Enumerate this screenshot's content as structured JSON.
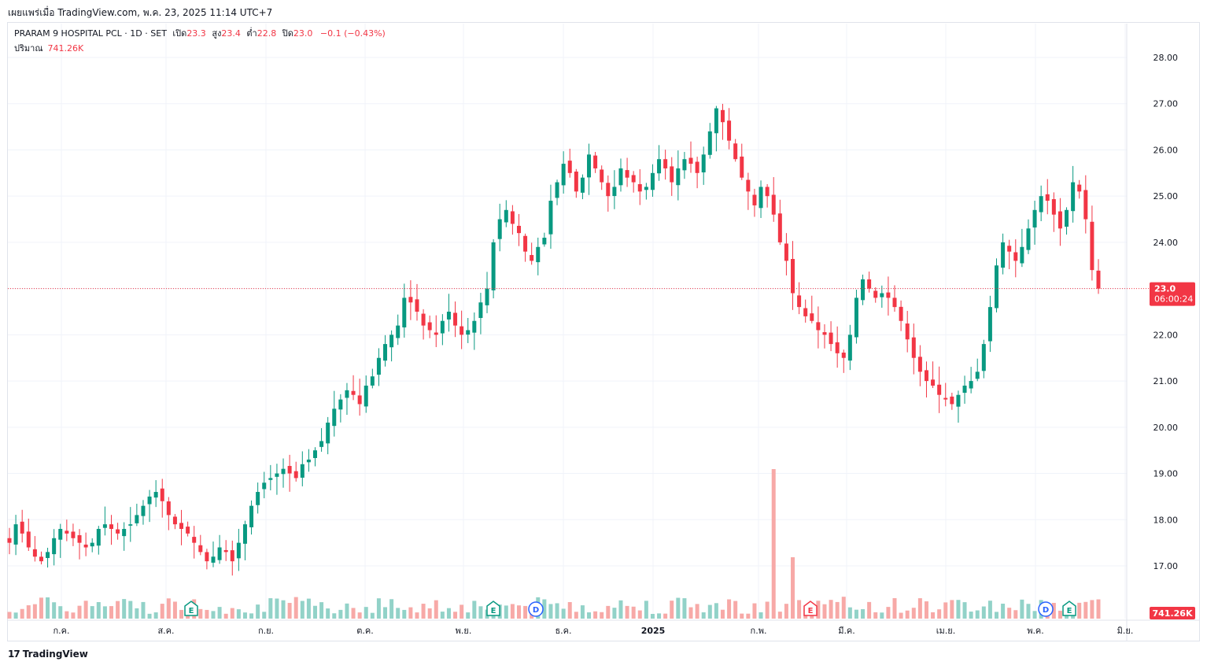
{
  "header": {
    "published_text": "เผยแพร่เมื่อ TradingView.com, พ.ค. 23, 2025 11:14 UTC+7"
  },
  "legend": {
    "symbol": "PRARAM 9 HOSPITAL PCL · 1D · SET",
    "open_label": "เปิด",
    "open_value": "23.3",
    "high_label": "สูง",
    "high_value": "23.4",
    "low_label": "ต่ำ",
    "low_value": "22.8",
    "close_label": "ปิด",
    "close_value": "23.0",
    "change": "−0.1 (−0.43%)"
  },
  "volume_legend": {
    "label": "ปริมาณ",
    "value": "741.26K"
  },
  "footer": {
    "brand": "TradingView"
  },
  "colors": {
    "up": "#089981",
    "down": "#f23645",
    "vol_up": "#92d2c8",
    "vol_down": "#f7a9a7",
    "grid": "#f0f3fa"
  },
  "chart_data": {
    "type": "candlestick",
    "y_ticks": [
      "28.00",
      "27.00",
      "26.00",
      "25.00",
      "24.00",
      "23.00",
      "22.00",
      "21.00",
      "20.00",
      "19.00",
      "18.00",
      "17.00"
    ],
    "ylim": [
      16.1,
      28.55
    ],
    "x_ticks": [
      "ก.ค.",
      "ส.ค.",
      "ก.ย.",
      "ต.ค.",
      "พ.ย.",
      "ธ.ค.",
      "2025",
      "ก.พ.",
      "มี.ค.",
      "เม.ย.",
      "พ.ค.",
      "มิ.ย."
    ],
    "last_price": {
      "value": "23.0",
      "countdown": "06:00:24"
    },
    "last_volume": "741.26K",
    "events": [
      {
        "type": "E",
        "date": "2024-08-08"
      },
      {
        "type": "E",
        "date": "2024-11-14"
      },
      {
        "type": "D",
        "date": "2024-11-28"
      },
      {
        "type": "E",
        "date": "2025-02-26"
      },
      {
        "type": "D",
        "date": "2025-05-07"
      },
      {
        "type": "E",
        "date": "2025-05-13"
      }
    ],
    "close_series": [
      17.5,
      17.9,
      17.7,
      17.4,
      17.2,
      17.1,
      17.3,
      17.6,
      17.8,
      17.7,
      17.6,
      17.5,
      17.4,
      17.5,
      17.8,
      17.9,
      17.8,
      17.7,
      17.8,
      17.9,
      18.1,
      18.3,
      18.5,
      18.6,
      18.4,
      18.1,
      17.9,
      17.8,
      17.7,
      17.5,
      17.3,
      17.1,
      17.2,
      17.4,
      17.3,
      17.1,
      17.5,
      17.9,
      18.3,
      18.6,
      18.8,
      18.9,
      19.0,
      19.1,
      19.0,
      18.9,
      19.2,
      19.3,
      19.5,
      19.7,
      20.1,
      20.4,
      20.6,
      20.8,
      20.7,
      20.5,
      20.9,
      21.1,
      21.5,
      21.8,
      22.0,
      22.2,
      22.8,
      22.7,
      22.5,
      22.2,
      22.1,
      22.0,
      22.3,
      22.5,
      22.2,
      22.0,
      22.1,
      22.3,
      22.7,
      23.0,
      24.0,
      24.5,
      24.7,
      24.4,
      24.2,
      23.8,
      23.6,
      23.9,
      24.1,
      24.9,
      25.3,
      25.7,
      25.5,
      25.1,
      25.4,
      25.9,
      25.6,
      25.3,
      25.0,
      25.2,
      25.6,
      25.4,
      25.3,
      25.1,
      25.2,
      25.5,
      25.8,
      25.6,
      25.3,
      25.6,
      25.8,
      25.7,
      25.5,
      25.9,
      26.4,
      26.9,
      26.6,
      26.2,
      25.8,
      25.4,
      25.1,
      24.8,
      25.2,
      25.0,
      24.6,
      24.0,
      23.6,
      22.9,
      22.6,
      22.4,
      22.3,
      22.1,
      22.0,
      21.8,
      21.6,
      21.5,
      22.0,
      22.8,
      23.2,
      23.0,
      22.8,
      22.9,
      22.8,
      22.6,
      22.3,
      21.9,
      21.5,
      21.2,
      21.0,
      20.9,
      20.7,
      20.6,
      20.5,
      20.7,
      20.9,
      21.0,
      21.2,
      21.8,
      22.6,
      23.5,
      24.0,
      23.8,
      23.6,
      23.9,
      24.3,
      24.7,
      25.0,
      24.9,
      24.6,
      24.3,
      24.7,
      25.3,
      25.1,
      24.5,
      23.4,
      23.0
    ]
  }
}
